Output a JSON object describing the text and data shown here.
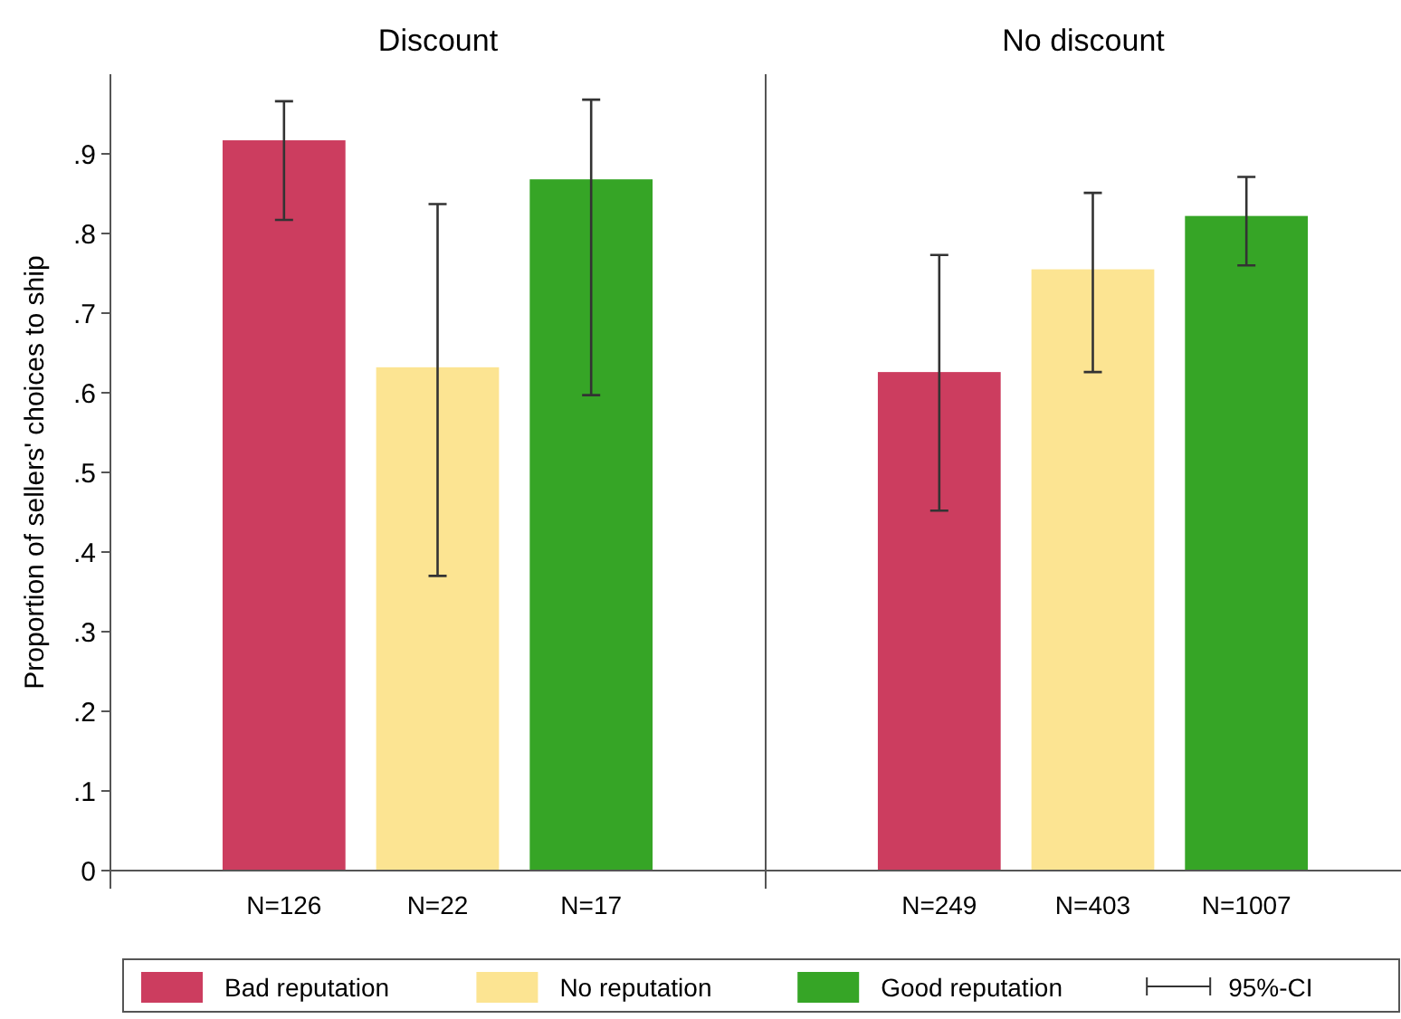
{
  "chart_data": [
    {
      "type": "bar",
      "title": "Discount",
      "ylabel": "Proportion of sellers' choices to ship",
      "categories": [
        "N=126",
        "N=22",
        "N=17"
      ],
      "ylim": [
        0,
        1
      ],
      "yticks": [
        {
          "value": 0,
          "label": "0"
        },
        {
          "value": 0.1,
          "label": ".1"
        },
        {
          "value": 0.2,
          "label": ".2"
        },
        {
          "value": 0.3,
          "label": ".3"
        },
        {
          "value": 0.4,
          "label": ".4"
        },
        {
          "value": 0.5,
          "label": ".5"
        },
        {
          "value": 0.6,
          "label": ".6"
        },
        {
          "value": 0.7,
          "label": ".7"
        },
        {
          "value": 0.8,
          "label": ".8"
        },
        {
          "value": 0.9,
          "label": ".9"
        }
      ],
      "legend": "bottom",
      "annotations": [
        "95%-CI"
      ],
      "series": [
        {
          "name": "Bad reputation",
          "color": "#cc3d5f",
          "values": [
            0.917,
            null,
            null
          ],
          "errors": [
            [
              0.817,
              0.966
            ],
            null,
            null
          ]
        },
        {
          "name": "No reputation",
          "color": "#fce492",
          "values": [
            null,
            0.632,
            null
          ],
          "errors": [
            null,
            [
              0.37,
              0.837
            ],
            null
          ]
        },
        {
          "name": "Good reputation",
          "color": "#36a526",
          "values": [
            null,
            null,
            0.868
          ],
          "errors": [
            null,
            null,
            [
              0.597,
              0.968
            ]
          ]
        }
      ]
    },
    {
      "type": "bar",
      "title": "No discount",
      "categories": [
        "N=249",
        "N=403",
        "N=1007"
      ],
      "ylim": [
        0,
        1
      ],
      "tick_labels": "x",
      "series": [
        {
          "color": "#cc3d5f",
          "values": [
            0.626,
            null,
            null
          ],
          "errors": [
            [
              0.452,
              0.773
            ],
            null,
            null
          ]
        },
        {
          "color": "#fce492",
          "values": [
            null,
            0.755,
            null
          ],
          "errors": [
            null,
            [
              0.626,
              0.851
            ],
            null
          ]
        },
        {
          "color": "#36a526",
          "values": [
            null,
            null,
            0.822
          ],
          "errors": [
            null,
            null,
            [
              0.76,
              0.871
            ]
          ]
        }
      ]
    }
  ]
}
